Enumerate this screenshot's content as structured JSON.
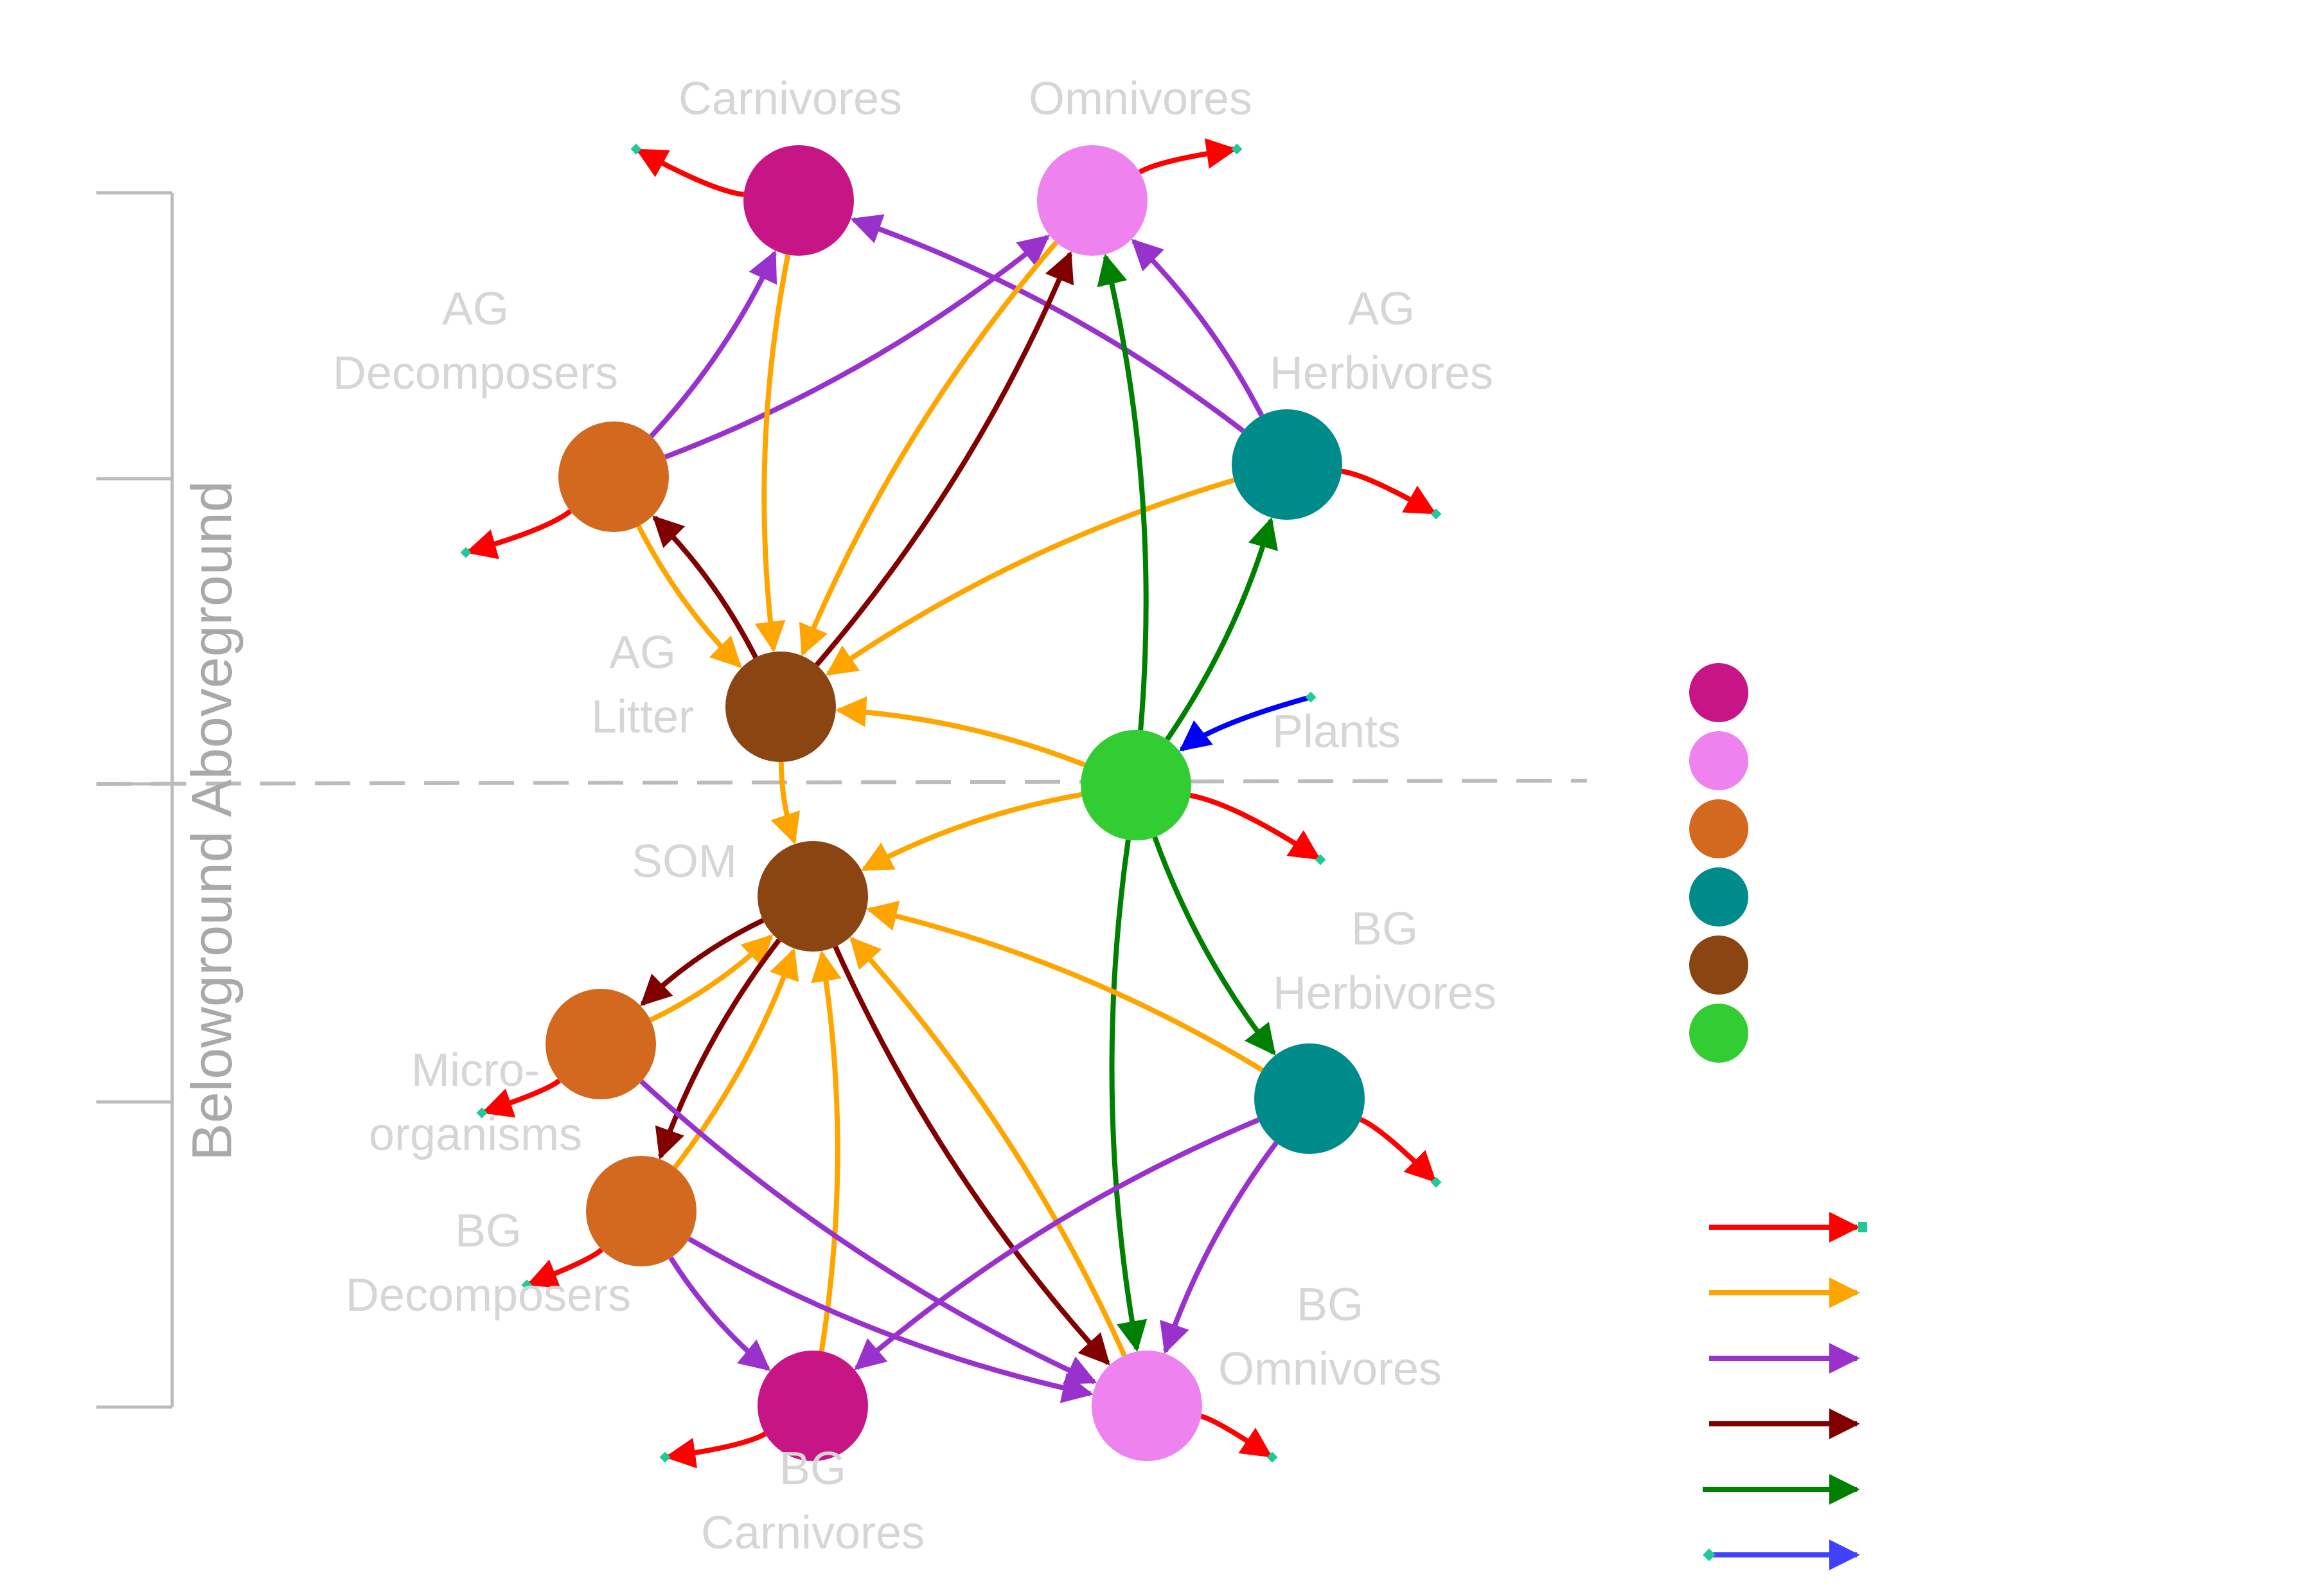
{
  "layers": {
    "above": "Aboveground",
    "below": "Belowground"
  },
  "colors": {
    "magenta": "#C71585",
    "violet": "#EE82EE",
    "chocolate": "#D2691E",
    "teal": "#008B8B",
    "brown": "#8B4513",
    "green": "#32CD32",
    "edge_red": "#FF0000",
    "edge_orange": "#FFA500",
    "edge_purple": "#9932CC",
    "edge_darkred": "#800000",
    "edge_green": "#008000",
    "edge_blue": "#0000FF",
    "legend_blue": "#4040FF",
    "tip": "#20C997",
    "bracket": "#bbbbbb",
    "dashed": "#bbbbbb"
  },
  "nodes": [
    {
      "id": "ag_carn",
      "label": "Carnivores",
      "color": "magenta"
    },
    {
      "id": "ag_omni",
      "label": "Omnivores",
      "color": "violet"
    },
    {
      "id": "ag_decomp",
      "label": "AG\nDecomposers",
      "color": "chocolate"
    },
    {
      "id": "ag_herb",
      "label": "AG\nHerbivores",
      "color": "teal"
    },
    {
      "id": "ag_litter",
      "label": "AG\nLitter",
      "color": "brown"
    },
    {
      "id": "plants",
      "label": "Plants",
      "color": "green"
    },
    {
      "id": "som",
      "label": "SOM",
      "color": "brown"
    },
    {
      "id": "micro",
      "label": "Micro-\norganisms",
      "color": "chocolate"
    },
    {
      "id": "bg_herb",
      "label": "BG\nHerbivores",
      "color": "teal"
    },
    {
      "id": "bg_decomp",
      "label": "BG\nDecomposers",
      "color": "chocolate"
    },
    {
      "id": "bg_carn",
      "label": "BG\nCarnivores",
      "color": "magenta"
    },
    {
      "id": "bg_omni",
      "label": "BG\nOmnivores",
      "color": "violet"
    }
  ],
  "edges": [
    {
      "from": "ag_decomp",
      "to": "ag_carn",
      "type": "purple"
    },
    {
      "from": "ag_herb",
      "to": "ag_carn",
      "type": "purple"
    },
    {
      "from": "ag_decomp",
      "to": "ag_omni",
      "type": "purple"
    },
    {
      "from": "ag_herb",
      "to": "ag_omni",
      "type": "purple"
    },
    {
      "from": "ag_carn",
      "to": "ag_litter",
      "type": "orange"
    },
    {
      "from": "ag_omni",
      "to": "ag_litter",
      "type": "orange"
    },
    {
      "from": "ag_decomp",
      "to": "ag_litter",
      "type": "orange"
    },
    {
      "from": "ag_herb",
      "to": "ag_litter",
      "type": "orange"
    },
    {
      "from": "plants",
      "to": "ag_litter",
      "type": "orange"
    },
    {
      "from": "ag_litter",
      "to": "ag_omni",
      "type": "darkred"
    },
    {
      "from": "ag_litter",
      "to": "ag_decomp",
      "type": "darkred"
    },
    {
      "from": "plants",
      "to": "ag_omni",
      "type": "green"
    },
    {
      "from": "plants",
      "to": "ag_herb",
      "type": "green"
    },
    {
      "from": "plants",
      "to": "bg_herb",
      "type": "green"
    },
    {
      "from": "plants",
      "to": "bg_omni",
      "type": "green"
    },
    {
      "from": "ag_litter",
      "to": "som",
      "type": "orange"
    },
    {
      "from": "plants",
      "to": "som",
      "type": "orange"
    },
    {
      "from": "micro",
      "to": "som",
      "type": "orange"
    },
    {
      "from": "bg_decomp",
      "to": "som",
      "type": "orange"
    },
    {
      "from": "bg_carn",
      "to": "som",
      "type": "orange"
    },
    {
      "from": "bg_omni",
      "to": "som",
      "type": "orange"
    },
    {
      "from": "bg_herb",
      "to": "som",
      "type": "orange"
    },
    {
      "from": "som",
      "to": "micro",
      "type": "darkred"
    },
    {
      "from": "som",
      "to": "bg_decomp",
      "type": "darkred"
    },
    {
      "from": "som",
      "to": "bg_omni",
      "type": "darkred"
    },
    {
      "from": "micro",
      "to": "bg_omni",
      "type": "purple"
    },
    {
      "from": "bg_decomp",
      "to": "bg_carn",
      "type": "purple"
    },
    {
      "from": "bg_decomp",
      "to": "bg_omni",
      "type": "purple"
    },
    {
      "from": "bg_herb",
      "to": "bg_carn",
      "type": "purple"
    },
    {
      "from": "bg_herb",
      "to": "bg_omni",
      "type": "purple"
    }
  ],
  "legend": {
    "nodes": [
      "magenta",
      "violet",
      "chocolate",
      "teal",
      "brown",
      "green"
    ],
    "edges": [
      "red",
      "orange",
      "purple",
      "darkred",
      "green",
      "blue"
    ]
  }
}
